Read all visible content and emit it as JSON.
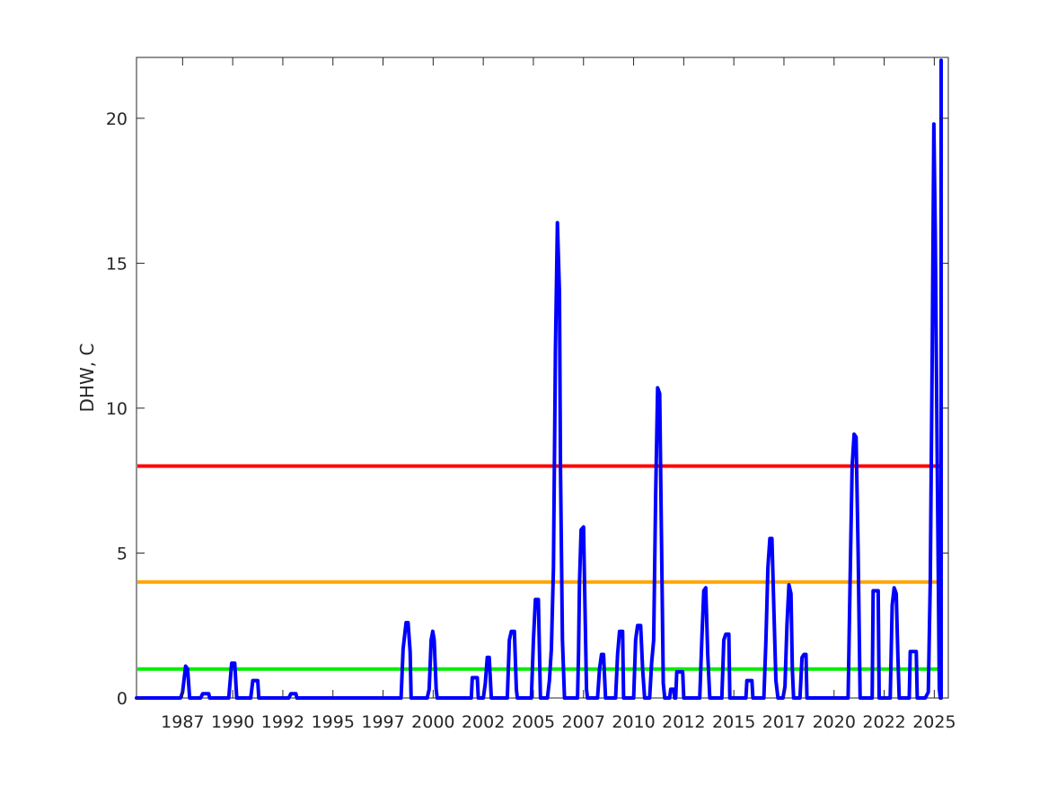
{
  "chart_data": {
    "type": "line",
    "title": "",
    "xlabel": "",
    "ylabel": "DHW, C",
    "xlim": [
      1985.0,
      2025.5
    ],
    "ylim": [
      0,
      22.1
    ],
    "grid": false,
    "legend": "none",
    "x_tick_labels": [
      "1987",
      "1990",
      "1992",
      "1995",
      "1997",
      "2000",
      "2002",
      "2005",
      "2007",
      "2010",
      "2012",
      "2015",
      "2017",
      "2020",
      "2022",
      "2025"
    ],
    "x_tick_values": [
      1987.3,
      1989.8,
      1992.3,
      1994.8,
      1997.3,
      1999.8,
      2002.3,
      2004.8,
      2007.3,
      2009.8,
      2012.3,
      2014.8,
      2017.3,
      2019.8,
      2022.3,
      2024.8
    ],
    "y_tick_values": [
      0,
      5,
      10,
      15,
      20
    ],
    "y_tick_labels": [
      "0",
      "5",
      "10",
      "15",
      "20"
    ],
    "thresholds": [
      {
        "value": 1,
        "color": "#00ee00"
      },
      {
        "value": 4,
        "color": "#ffa500"
      },
      {
        "value": 8,
        "color": "#ff0000"
      }
    ],
    "series": [
      {
        "color": "#0000ff",
        "points": [
          [
            1985.0,
            0
          ],
          [
            1987.2,
            0
          ],
          [
            1987.3,
            0.2
          ],
          [
            1987.45,
            1.1
          ],
          [
            1987.55,
            1.0
          ],
          [
            1987.65,
            0
          ],
          [
            1988.2,
            0
          ],
          [
            1988.3,
            0.15
          ],
          [
            1988.6,
            0.15
          ],
          [
            1988.65,
            0
          ],
          [
            1989.6,
            0
          ],
          [
            1989.75,
            1.2
          ],
          [
            1989.9,
            1.2
          ],
          [
            1990.0,
            0
          ],
          [
            1990.7,
            0
          ],
          [
            1990.8,
            0.6
          ],
          [
            1991.05,
            0.6
          ],
          [
            1991.1,
            0
          ],
          [
            1992.6,
            0
          ],
          [
            1992.7,
            0.15
          ],
          [
            1992.95,
            0.15
          ],
          [
            1993.0,
            0
          ],
          [
            1998.2,
            0
          ],
          [
            1998.3,
            1.7
          ],
          [
            1998.45,
            2.6
          ],
          [
            1998.55,
            2.6
          ],
          [
            1998.65,
            1.6
          ],
          [
            1998.7,
            0
          ],
          [
            1999.5,
            0
          ],
          [
            1999.6,
            0.3
          ],
          [
            1999.7,
            2.0
          ],
          [
            1999.78,
            2.3
          ],
          [
            1999.85,
            2.0
          ],
          [
            1999.95,
            0.3
          ],
          [
            2000.0,
            0
          ],
          [
            2001.7,
            0
          ],
          [
            2001.75,
            0.7
          ],
          [
            2002.0,
            0.7
          ],
          [
            2002.05,
            0
          ],
          [
            2002.3,
            0
          ],
          [
            2002.4,
            0.5
          ],
          [
            2002.5,
            1.4
          ],
          [
            2002.6,
            1.4
          ],
          [
            2002.7,
            0
          ],
          [
            2003.5,
            0
          ],
          [
            2003.6,
            2.0
          ],
          [
            2003.7,
            2.3
          ],
          [
            2003.85,
            2.3
          ],
          [
            2003.95,
            0.3
          ],
          [
            2004.0,
            0
          ],
          [
            2004.7,
            0
          ],
          [
            2004.8,
            2.0
          ],
          [
            2004.9,
            3.4
          ],
          [
            2005.05,
            3.4
          ],
          [
            2005.15,
            0
          ],
          [
            2005.5,
            0
          ],
          [
            2005.6,
            0.6
          ],
          [
            2005.7,
            1.7
          ],
          [
            2005.8,
            4.5
          ],
          [
            2005.9,
            12.0
          ],
          [
            2006.0,
            16.4
          ],
          [
            2006.1,
            14.0
          ],
          [
            2006.15,
            8.0
          ],
          [
            2006.25,
            2.0
          ],
          [
            2006.35,
            0
          ],
          [
            2007.0,
            0
          ],
          [
            2007.05,
            1.5
          ],
          [
            2007.1,
            4.0
          ],
          [
            2007.18,
            5.8
          ],
          [
            2007.3,
            5.9
          ],
          [
            2007.38,
            3.0
          ],
          [
            2007.45,
            0.3
          ],
          [
            2007.5,
            0
          ],
          [
            2008.0,
            0
          ],
          [
            2008.1,
            1.0
          ],
          [
            2008.2,
            1.5
          ],
          [
            2008.3,
            1.5
          ],
          [
            2008.4,
            0
          ],
          [
            2008.9,
            0
          ],
          [
            2009.0,
            1.5
          ],
          [
            2009.1,
            2.3
          ],
          [
            2009.25,
            2.3
          ],
          [
            2009.3,
            0
          ],
          [
            2009.8,
            0
          ],
          [
            2009.9,
            2.0
          ],
          [
            2010.0,
            2.5
          ],
          [
            2010.15,
            2.5
          ],
          [
            2010.25,
            1.0
          ],
          [
            2010.35,
            0
          ],
          [
            2010.6,
            0
          ],
          [
            2010.7,
            1.2
          ],
          [
            2010.8,
            2.0
          ],
          [
            2010.9,
            7.0
          ],
          [
            2011.0,
            10.7
          ],
          [
            2011.1,
            10.5
          ],
          [
            2011.2,
            5.0
          ],
          [
            2011.28,
            0.5
          ],
          [
            2011.35,
            0
          ],
          [
            2011.6,
            0
          ],
          [
            2011.65,
            0.3
          ],
          [
            2011.8,
            0.3
          ],
          [
            2011.85,
            0
          ],
          [
            2011.9,
            0
          ],
          [
            2011.95,
            0.9
          ],
          [
            2012.25,
            0.9
          ],
          [
            2012.3,
            0
          ],
          [
            2013.1,
            0
          ],
          [
            2013.2,
            2.0
          ],
          [
            2013.3,
            3.7
          ],
          [
            2013.4,
            3.8
          ],
          [
            2013.5,
            1.5
          ],
          [
            2013.6,
            0
          ],
          [
            2014.2,
            0
          ],
          [
            2014.3,
            2.0
          ],
          [
            2014.4,
            2.2
          ],
          [
            2014.55,
            2.2
          ],
          [
            2014.6,
            0
          ],
          [
            2015.4,
            0
          ],
          [
            2015.45,
            0.6
          ],
          [
            2015.7,
            0.6
          ],
          [
            2015.75,
            0
          ],
          [
            2016.3,
            0
          ],
          [
            2016.4,
            2.0
          ],
          [
            2016.5,
            4.5
          ],
          [
            2016.6,
            5.5
          ],
          [
            2016.7,
            5.5
          ],
          [
            2016.8,
            3.0
          ],
          [
            2016.9,
            0.6
          ],
          [
            2017.0,
            0
          ],
          [
            2017.25,
            0
          ],
          [
            2017.35,
            0.4
          ],
          [
            2017.45,
            2.5
          ],
          [
            2017.55,
            3.9
          ],
          [
            2017.65,
            3.6
          ],
          [
            2017.72,
            1.0
          ],
          [
            2017.78,
            0
          ],
          [
            2018.1,
            0
          ],
          [
            2018.2,
            1.4
          ],
          [
            2018.3,
            1.5
          ],
          [
            2018.4,
            1.5
          ],
          [
            2018.45,
            0
          ],
          [
            2020.5,
            0
          ],
          [
            2020.6,
            4.0
          ],
          [
            2020.7,
            8.0
          ],
          [
            2020.8,
            9.1
          ],
          [
            2020.9,
            9.0
          ],
          [
            2021.0,
            5.0
          ],
          [
            2021.1,
            0
          ],
          [
            2021.7,
            0
          ],
          [
            2021.75,
            3.7
          ],
          [
            2022.0,
            3.7
          ],
          [
            2022.05,
            0
          ],
          [
            2022.6,
            0
          ],
          [
            2022.7,
            3.2
          ],
          [
            2022.8,
            3.8
          ],
          [
            2022.9,
            3.6
          ],
          [
            2022.98,
            1.5
          ],
          [
            2023.05,
            0
          ],
          [
            2023.55,
            0
          ],
          [
            2023.6,
            1.6
          ],
          [
            2023.9,
            1.6
          ],
          [
            2023.95,
            0
          ],
          [
            2024.35,
            0
          ],
          [
            2024.5,
            0.2
          ],
          [
            2024.6,
            4.0
          ],
          [
            2024.7,
            12.0
          ],
          [
            2024.78,
            19.8
          ],
          [
            2024.85,
            16.0
          ],
          [
            2024.95,
            8.0
          ],
          [
            2025.05,
            0.3
          ],
          [
            2025.1,
            0
          ],
          [
            2025.25,
            0
          ],
          [
            2025.3,
            0.2
          ],
          [
            2025.45,
            10.0
          ],
          [
            2025.55,
            15.0
          ],
          [
            2025.65,
            18.0
          ],
          [
            2025.75,
            21.0
          ],
          [
            2025.82,
            22.0
          ],
          [
            2025.9,
            21.0
          ],
          [
            2026.0,
            17.5
          ],
          [
            2026.1,
            11.0
          ],
          [
            2026.2,
            5.5
          ],
          [
            2026.25,
            4.0
          ]
        ]
      }
    ]
  }
}
